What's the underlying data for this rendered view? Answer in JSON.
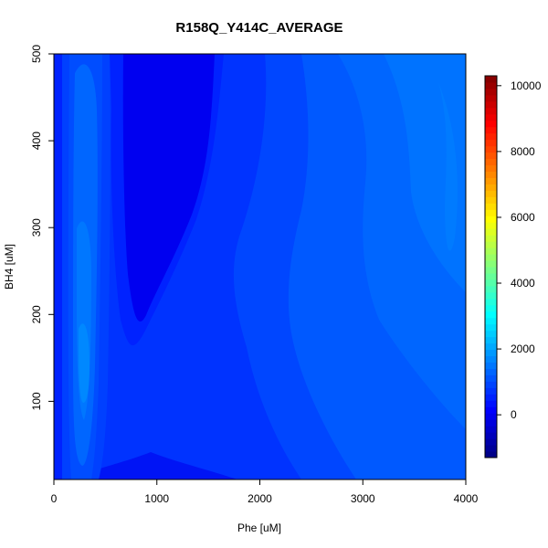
{
  "chart_data": {
    "type": "contour",
    "title": "R158Q_Y414C_AVERAGE",
    "xlabel": "Phe [uM]",
    "ylabel": "BH4 [uM]",
    "xlim": [
      0,
      4000
    ],
    "ylim": [
      10,
      500
    ],
    "x_ticks": [
      0,
      1000,
      2000,
      3000,
      4000
    ],
    "y_ticks": [
      100,
      200,
      300,
      400,
      500
    ],
    "colorbar": {
      "range": [
        -1300,
        10300
      ],
      "ticks": [
        0,
        2000,
        4000,
        6000,
        8000,
        10000
      ],
      "palette": "jet"
    },
    "grid": false
  }
}
